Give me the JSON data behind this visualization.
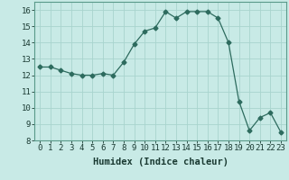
{
  "x": [
    0,
    1,
    2,
    3,
    4,
    5,
    6,
    7,
    8,
    9,
    10,
    11,
    12,
    13,
    14,
    15,
    16,
    17,
    18,
    19,
    20,
    21,
    22,
    23
  ],
  "y": [
    12.5,
    12.5,
    12.3,
    12.1,
    12.0,
    12.0,
    12.1,
    12.0,
    12.8,
    13.9,
    14.7,
    14.9,
    15.9,
    15.5,
    15.9,
    15.9,
    15.9,
    15.5,
    14.0,
    10.4,
    8.6,
    9.4,
    9.7,
    8.5
  ],
  "line_color": "#2d6b5e",
  "marker": "D",
  "marker_size": 2.5,
  "bg_color": "#c8eae6",
  "grid_color": "#a8d4ce",
  "xlabel": "Humidex (Indice chaleur)",
  "ylim": [
    8,
    16.5
  ],
  "xlim": [
    -0.5,
    23.5
  ],
  "yticks": [
    8,
    9,
    10,
    11,
    12,
    13,
    14,
    15,
    16
  ],
  "xticks": [
    0,
    1,
    2,
    3,
    4,
    5,
    6,
    7,
    8,
    9,
    10,
    11,
    12,
    13,
    14,
    15,
    16,
    17,
    18,
    19,
    20,
    21,
    22,
    23
  ],
  "xlabel_fontsize": 7.5,
  "tick_fontsize": 6.5
}
